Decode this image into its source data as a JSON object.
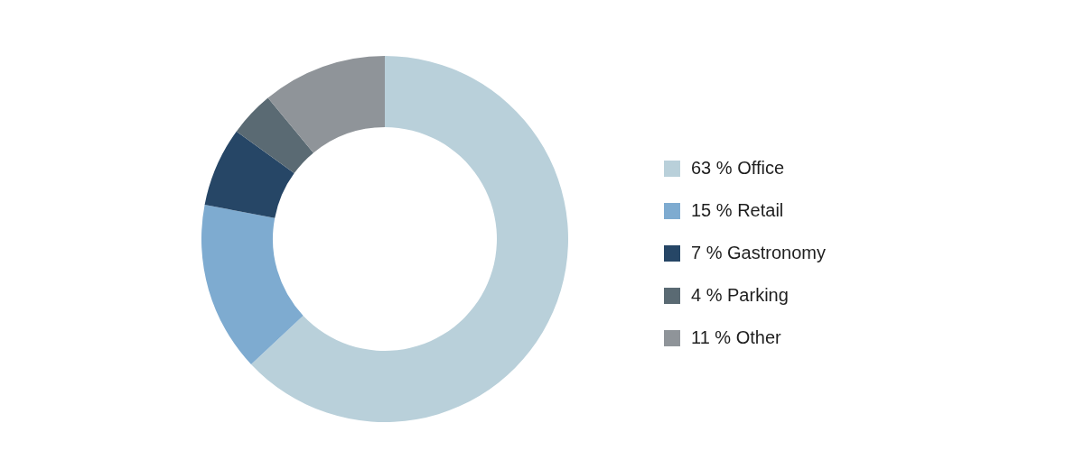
{
  "chart_data": {
    "type": "donut",
    "categories": [
      "63 % Office",
      "15 % Retail",
      "7 % Gastronomy",
      "4 % Parking",
      "11 % Other"
    ],
    "values": [
      63,
      15,
      7,
      4,
      11
    ],
    "colors": [
      "#b9d0da",
      "#7eabd0",
      "#264666",
      "#5a6a73",
      "#8f9499"
    ],
    "legend": "right"
  }
}
